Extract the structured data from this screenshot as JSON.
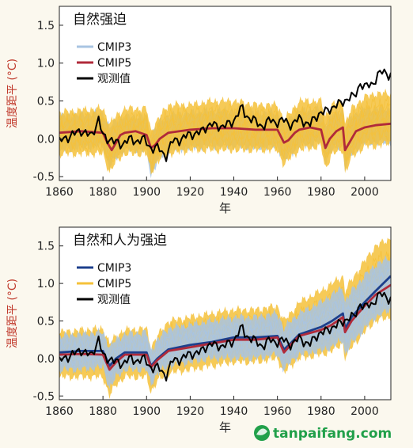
{
  "colors": {
    "cmip3_ensemble": "#a8c4e2",
    "cmip5_ensemble": "#f5c13a",
    "cmip3_mean": "#1d3f8c",
    "cmip5_mean": "#b02a3a",
    "observed": "#000000",
    "ylabel": "#c0392b",
    "watermark": "#21a04a"
  },
  "watermark": {
    "text": "tanpaifang.com",
    "icon": "leaf-globe-icon"
  },
  "chart_data": [
    {
      "type": "line",
      "title": "自然强迫",
      "xlabel": "年",
      "ylabel": "温度距平 (°C)",
      "xlim": [
        1860,
        2012
      ],
      "ylim": [
        -0.55,
        1.75
      ],
      "xticks": [
        1860,
        1880,
        1900,
        1920,
        1940,
        1960,
        1980,
        2000
      ],
      "yticks": [
        -0.5,
        0.0,
        0.5,
        1.0,
        1.5
      ],
      "ytick_labels": [
        "-0.5",
        "0.0",
        "0.5",
        "1.0",
        "1.5"
      ],
      "legend_position": "top-left",
      "legend": [
        {
          "key": "cmip3",
          "label": "CMIP3"
        },
        {
          "key": "cmip5",
          "label": "CMIP5"
        },
        {
          "key": "obs",
          "label": "观测值"
        }
      ],
      "series": [
        {
          "name": "CMIP3",
          "role": "ensemble_band",
          "x": [
            1860,
            1870,
            1880,
            1883,
            1886,
            1890,
            1900,
            1902,
            1905,
            1910,
            1920,
            1930,
            1940,
            1950,
            1960,
            1963,
            1966,
            1970,
            1980,
            1982,
            1985,
            1990,
            1991,
            1994,
            2000
          ],
          "lower": [
            -0.15,
            -0.12,
            -0.1,
            -0.38,
            -0.25,
            -0.15,
            -0.15,
            -0.5,
            -0.3,
            -0.15,
            -0.12,
            -0.1,
            -0.1,
            -0.12,
            -0.1,
            -0.3,
            -0.2,
            -0.1,
            -0.05,
            -0.3,
            -0.15,
            -0.1,
            -0.4,
            -0.2,
            -0.05
          ],
          "upper": [
            0.3,
            0.32,
            0.35,
            0.15,
            0.25,
            0.3,
            0.3,
            0.05,
            0.2,
            0.32,
            0.35,
            0.38,
            0.38,
            0.35,
            0.35,
            0.18,
            0.28,
            0.38,
            0.4,
            0.2,
            0.32,
            0.4,
            0.15,
            0.3,
            0.4
          ]
        },
        {
          "name": "CMIP5",
          "role": "ensemble_band",
          "x": [
            1860,
            1870,
            1880,
            1883,
            1886,
            1890,
            1900,
            1902,
            1905,
            1910,
            1920,
            1930,
            1940,
            1950,
            1960,
            1963,
            1966,
            1970,
            1980,
            1982,
            1985,
            1990,
            1991,
            1994,
            2000,
            2005,
            2012
          ],
          "lower": [
            -0.2,
            -0.2,
            -0.2,
            -0.45,
            -0.3,
            -0.2,
            -0.2,
            -0.45,
            -0.3,
            -0.2,
            -0.15,
            -0.15,
            -0.15,
            -0.15,
            -0.15,
            -0.35,
            -0.25,
            -0.15,
            -0.1,
            -0.4,
            -0.2,
            -0.15,
            -0.45,
            -0.25,
            -0.1,
            -0.1,
            -0.05
          ],
          "upper": [
            0.35,
            0.38,
            0.4,
            0.2,
            0.3,
            0.4,
            0.4,
            0.1,
            0.25,
            0.45,
            0.45,
            0.5,
            0.5,
            0.45,
            0.45,
            0.25,
            0.35,
            0.5,
            0.5,
            0.3,
            0.45,
            0.5,
            0.2,
            0.4,
            0.55,
            0.6,
            0.6
          ]
        },
        {
          "name": "CMIP5",
          "role": "multi_model_mean",
          "x": [
            1860,
            1870,
            1880,
            1882,
            1884,
            1886,
            1888,
            1890,
            1895,
            1900,
            1902,
            1904,
            1906,
            1910,
            1920,
            1930,
            1940,
            1950,
            1960,
            1963,
            1965,
            1968,
            1970,
            1975,
            1980,
            1982,
            1984,
            1987,
            1990,
            1991,
            1993,
            1996,
            2000,
            2005,
            2012
          ],
          "y": [
            0.08,
            0.1,
            0.08,
            -0.05,
            -0.15,
            -0.05,
            0.05,
            0.08,
            0.1,
            0.05,
            -0.12,
            -0.08,
            0.0,
            0.08,
            0.12,
            0.14,
            0.14,
            0.12,
            0.12,
            -0.05,
            -0.02,
            0.08,
            0.12,
            0.15,
            0.12,
            -0.12,
            0.0,
            0.1,
            0.15,
            -0.15,
            -0.05,
            0.1,
            0.15,
            0.18,
            0.2
          ]
        },
        {
          "name": "观测值",
          "role": "observed",
          "x": [
            1860,
            1865,
            1870,
            1875,
            1878,
            1880,
            1885,
            1890,
            1895,
            1900,
            1905,
            1909,
            1912,
            1915,
            1920,
            1925,
            1930,
            1935,
            1940,
            1944,
            1945,
            1950,
            1955,
            1960,
            1965,
            1970,
            1975,
            1980,
            1985,
            1990,
            1995,
            1998,
            2000,
            2005,
            2010,
            2012
          ],
          "y": [
            -0.05,
            0.05,
            0.1,
            0.05,
            0.25,
            0.05,
            -0.05,
            -0.05,
            0.0,
            -0.05,
            -0.15,
            -0.2,
            -0.05,
            0.0,
            0.05,
            0.1,
            0.2,
            0.15,
            0.25,
            0.4,
            0.35,
            0.2,
            0.2,
            0.25,
            0.2,
            0.25,
            0.2,
            0.35,
            0.4,
            0.5,
            0.55,
            0.75,
            0.65,
            0.8,
            0.9,
            0.85
          ]
        }
      ]
    },
    {
      "type": "line",
      "title": "自然和人为强迫",
      "xlabel": "年",
      "ylabel": "温度距平 (°C)",
      "xlim": [
        1860,
        2012
      ],
      "ylim": [
        -0.55,
        1.75
      ],
      "xticks": [
        1860,
        1880,
        1900,
        1920,
        1940,
        1960,
        1980,
        2000
      ],
      "yticks": [
        -0.5,
        0.0,
        0.5,
        1.0,
        1.5
      ],
      "ytick_labels": [
        "-0.5",
        "0.0",
        "0.5",
        "1.0",
        "1.5"
      ],
      "legend_position": "top-left",
      "legend": [
        {
          "key": "cmip3",
          "label": "CMIP3"
        },
        {
          "key": "cmip5",
          "label": "CMIP5"
        },
        {
          "key": "obs",
          "label": "观测值"
        }
      ],
      "series": [
        {
          "name": "CMIP5",
          "role": "ensemble_band",
          "x": [
            1860,
            1870,
            1880,
            1883,
            1886,
            1890,
            1900,
            1902,
            1905,
            1910,
            1920,
            1930,
            1940,
            1950,
            1960,
            1963,
            1966,
            1970,
            1980,
            1985,
            1990,
            1991,
            1994,
            2000,
            2005,
            2012
          ],
          "lower": [
            -0.25,
            -0.25,
            -0.25,
            -0.5,
            -0.35,
            -0.25,
            -0.25,
            -0.45,
            -0.3,
            -0.2,
            -0.15,
            -0.1,
            -0.05,
            -0.05,
            0.0,
            -0.2,
            -0.1,
            0.0,
            0.05,
            0.1,
            0.2,
            0.0,
            0.15,
            0.35,
            0.5,
            0.55
          ],
          "upper": [
            0.35,
            0.38,
            0.4,
            0.2,
            0.3,
            0.38,
            0.4,
            0.15,
            0.3,
            0.5,
            0.55,
            0.6,
            0.65,
            0.65,
            0.7,
            0.5,
            0.6,
            0.75,
            0.9,
            1.0,
            1.1,
            0.9,
            1.05,
            1.3,
            1.5,
            1.6
          ]
        },
        {
          "name": "CMIP3",
          "role": "ensemble_band",
          "x": [
            1860,
            1870,
            1880,
            1883,
            1886,
            1890,
            1900,
            1902,
            1905,
            1910,
            1920,
            1930,
            1940,
            1950,
            1960,
            1963,
            1966,
            1970,
            1980,
            1985,
            1990,
            1991,
            1994,
            2000,
            2005,
            2012
          ],
          "lower": [
            -0.15,
            -0.15,
            -0.12,
            -0.4,
            -0.25,
            -0.15,
            -0.15,
            -0.35,
            -0.2,
            -0.1,
            -0.05,
            0.0,
            0.0,
            0.0,
            0.05,
            -0.15,
            -0.05,
            0.05,
            0.1,
            0.15,
            0.25,
            0.05,
            0.2,
            0.4,
            0.55,
            0.65
          ],
          "upper": [
            0.3,
            0.32,
            0.35,
            0.15,
            0.25,
            0.32,
            0.35,
            0.1,
            0.25,
            0.4,
            0.45,
            0.5,
            0.55,
            0.55,
            0.6,
            0.4,
            0.5,
            0.6,
            0.75,
            0.85,
            0.95,
            0.75,
            0.9,
            1.1,
            1.25,
            1.35
          ]
        },
        {
          "name": "CMIP3",
          "role": "multi_model_mean",
          "x": [
            1860,
            1870,
            1880,
            1883,
            1886,
            1890,
            1900,
            1902,
            1905,
            1910,
            1920,
            1930,
            1940,
            1950,
            1960,
            1963,
            1966,
            1970,
            1980,
            1985,
            1990,
            1991,
            1994,
            2000,
            2005,
            2012
          ],
          "y": [
            0.08,
            0.1,
            0.1,
            -0.1,
            0.0,
            0.08,
            0.08,
            -0.1,
            0.0,
            0.12,
            0.18,
            0.22,
            0.28,
            0.28,
            0.3,
            0.12,
            0.2,
            0.32,
            0.42,
            0.5,
            0.6,
            0.4,
            0.55,
            0.75,
            0.9,
            1.1
          ]
        },
        {
          "name": "CMIP5",
          "role": "multi_model_mean",
          "x": [
            1860,
            1870,
            1880,
            1883,
            1886,
            1890,
            1900,
            1902,
            1905,
            1910,
            1920,
            1930,
            1940,
            1950,
            1960,
            1963,
            1966,
            1970,
            1980,
            1985,
            1990,
            1991,
            1994,
            2000,
            2005,
            2012
          ],
          "y": [
            0.05,
            0.06,
            0.05,
            -0.15,
            -0.05,
            0.05,
            0.05,
            -0.12,
            -0.02,
            0.1,
            0.15,
            0.2,
            0.25,
            0.25,
            0.28,
            0.08,
            0.18,
            0.3,
            0.38,
            0.45,
            0.55,
            0.35,
            0.5,
            0.7,
            0.85,
            0.98
          ]
        },
        {
          "name": "观测值",
          "role": "observed",
          "x": [
            1860,
            1865,
            1870,
            1875,
            1878,
            1880,
            1885,
            1890,
            1895,
            1900,
            1905,
            1909,
            1912,
            1915,
            1920,
            1925,
            1930,
            1935,
            1940,
            1944,
            1945,
            1950,
            1955,
            1960,
            1965,
            1970,
            1975,
            1980,
            1985,
            1990,
            1995,
            1998,
            2000,
            2005,
            2010,
            2012
          ],
          "y": [
            -0.05,
            0.05,
            0.1,
            0.05,
            0.25,
            0.05,
            -0.05,
            -0.05,
            0.0,
            -0.05,
            -0.15,
            -0.2,
            -0.05,
            0.0,
            0.05,
            0.1,
            0.2,
            0.15,
            0.25,
            0.4,
            0.35,
            0.2,
            0.2,
            0.25,
            0.2,
            0.25,
            0.2,
            0.35,
            0.4,
            0.5,
            0.55,
            0.75,
            0.65,
            0.8,
            0.85,
            0.8
          ]
        }
      ]
    }
  ]
}
